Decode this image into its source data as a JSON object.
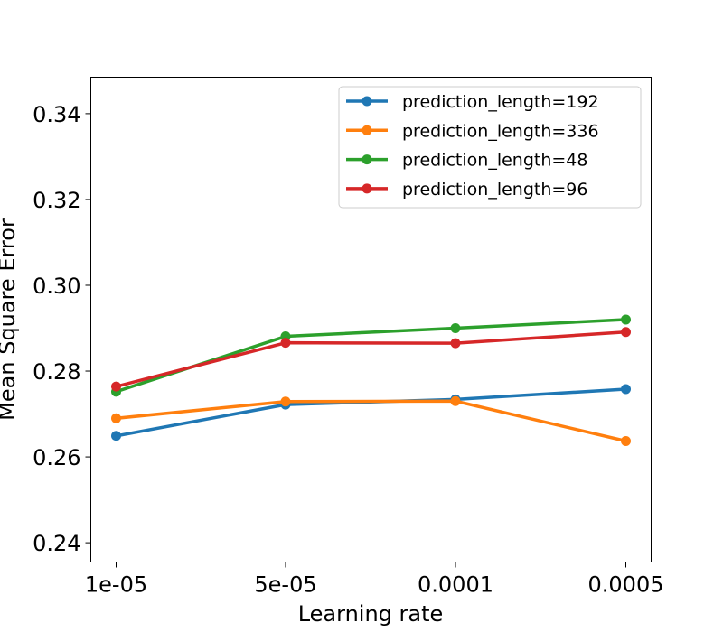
{
  "chart_data": {
    "type": "line",
    "title": "",
    "xlabel": "Learning rate",
    "ylabel": "Mean Square Error",
    "categories": [
      "1e-05",
      "5e-05",
      "0.0001",
      "0.0005"
    ],
    "ylim": [
      0.2355,
      0.3485
    ],
    "yticks": [
      0.24,
      0.26,
      0.28,
      0.3,
      0.32,
      0.34
    ],
    "ytick_labels": [
      "0.24",
      "0.26",
      "0.28",
      "0.30",
      "0.32",
      "0.34"
    ],
    "grid": false,
    "legend_position": "top-right",
    "series": [
      {
        "name": "prediction_length=192",
        "color": "#1f77b4",
        "values": [
          0.2649,
          0.2722,
          0.2734,
          0.2758
        ]
      },
      {
        "name": "prediction_length=336",
        "color": "#ff7f0e",
        "values": [
          0.269,
          0.2729,
          0.273,
          0.2637
        ]
      },
      {
        "name": "prediction_length=48",
        "color": "#2ca02c",
        "values": [
          0.2752,
          0.2881,
          0.29,
          0.292
        ]
      },
      {
        "name": "prediction_length=96",
        "color": "#d62728",
        "values": [
          0.2764,
          0.2866,
          0.2865,
          0.2891
        ]
      }
    ]
  }
}
